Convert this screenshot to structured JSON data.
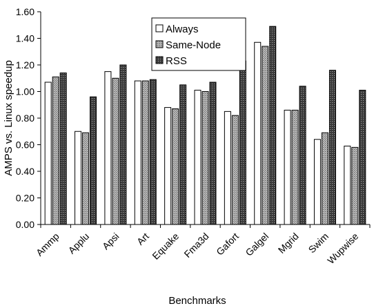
{
  "chart_data": {
    "type": "bar",
    "xlabel": "Benchmarks",
    "ylabel": "AMPS vs. Linux speedup",
    "ylim": [
      0,
      1.6
    ],
    "ytick_step": 0.2,
    "ytick_labels": [
      "0.00",
      "0.20",
      "0.40",
      "0.60",
      "0.80",
      "1.00",
      "1.20",
      "1.40",
      "1.60"
    ],
    "grid": false,
    "legend_position": "top-center",
    "categories": [
      "Ammp",
      "Applu",
      "Apsi",
      "Art",
      "Equake",
      "Fma3d",
      "Gafort",
      "Galgel",
      "Mgrid",
      "Swim",
      "Wupwise"
    ],
    "series": [
      {
        "name": "Always",
        "color": "#ffffff",
        "values": [
          1.07,
          0.7,
          1.15,
          1.08,
          0.88,
          1.01,
          0.85,
          1.37,
          0.86,
          0.64,
          0.59
        ]
      },
      {
        "name": "Same-Node",
        "color": "#a0a0a0",
        "values": [
          1.11,
          0.69,
          1.1,
          1.08,
          0.87,
          1.0,
          0.82,
          1.34,
          0.86,
          0.69,
          0.58
        ]
      },
      {
        "name": "RSS",
        "color": "#505050",
        "values": [
          1.14,
          0.96,
          1.2,
          1.09,
          1.05,
          1.07,
          1.23,
          1.49,
          1.04,
          1.16,
          1.01
        ]
      }
    ]
  }
}
